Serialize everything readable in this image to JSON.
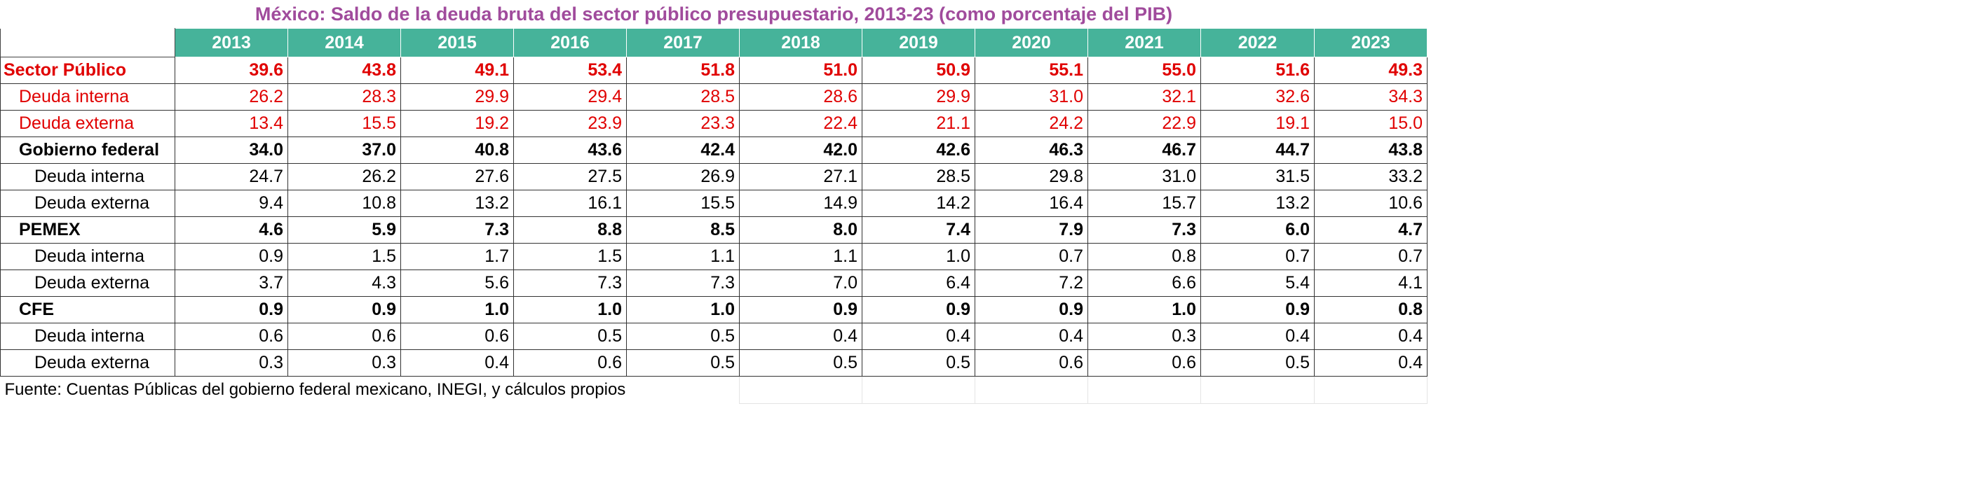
{
  "title": "México: Saldo de la deuda bruta del sector público presupuestario, 2013-23 (como  porcentaje del PIB)",
  "table": {
    "headers": [
      "2013",
      "2014",
      "2015",
      "2016",
      "2017",
      "2018",
      "2019",
      "2020",
      "2021",
      "2022",
      "2023"
    ],
    "rows": [
      {
        "label": "Sector Público",
        "values": [
          "39.6",
          "43.8",
          "49.1",
          "53.4",
          "51.8",
          "51.0",
          "50.9",
          "55.1",
          "55.0",
          "51.6",
          "49.3"
        ]
      },
      {
        "label": "Deuda interna",
        "values": [
          "26.2",
          "28.3",
          "29.9",
          "29.4",
          "28.5",
          "28.6",
          "29.9",
          "31.0",
          "32.1",
          "32.6",
          "34.3"
        ]
      },
      {
        "label": "Deuda externa",
        "values": [
          "13.4",
          "15.5",
          "19.2",
          "23.9",
          "23.3",
          "22.4",
          "21.1",
          "24.2",
          "22.9",
          "19.1",
          "15.0"
        ]
      },
      {
        "label": "Gobierno federal",
        "values": [
          "34.0",
          "37.0",
          "40.8",
          "43.6",
          "42.4",
          "42.0",
          "42.6",
          "46.3",
          "46.7",
          "44.7",
          "43.8"
        ]
      },
      {
        "label": "Deuda interna",
        "values": [
          "24.7",
          "26.2",
          "27.6",
          "27.5",
          "26.9",
          "27.1",
          "28.5",
          "29.8",
          "31.0",
          "31.5",
          "33.2"
        ]
      },
      {
        "label": "Deuda externa",
        "values": [
          "9.4",
          "10.8",
          "13.2",
          "16.1",
          "15.5",
          "14.9",
          "14.2",
          "16.4",
          "15.7",
          "13.2",
          "10.6"
        ]
      },
      {
        "label": "PEMEX",
        "values": [
          "4.6",
          "5.9",
          "7.3",
          "8.8",
          "8.5",
          "8.0",
          "7.4",
          "7.9",
          "7.3",
          "6.0",
          "4.7"
        ]
      },
      {
        "label": "Deuda interna",
        "values": [
          "0.9",
          "1.5",
          "1.7",
          "1.5",
          "1.1",
          "1.1",
          "1.0",
          "0.7",
          "0.8",
          "0.7",
          "0.7"
        ]
      },
      {
        "label": "Deuda externa",
        "values": [
          "3.7",
          "4.3",
          "5.6",
          "7.3",
          "7.3",
          "7.0",
          "6.4",
          "7.2",
          "6.6",
          "5.4",
          "4.1"
        ]
      },
      {
        "label": "CFE",
        "values": [
          "0.9",
          "0.9",
          "1.0",
          "1.0",
          "1.0",
          "0.9",
          "0.9",
          "0.9",
          "1.0",
          "0.9",
          "0.8"
        ]
      },
      {
        "label": "Deuda interna",
        "values": [
          "0.6",
          "0.6",
          "0.6",
          "0.5",
          "0.5",
          "0.4",
          "0.4",
          "0.4",
          "0.3",
          "0.4",
          "0.4"
        ]
      },
      {
        "label": "Deuda externa",
        "values": [
          "0.3",
          "0.3",
          "0.4",
          "0.6",
          "0.5",
          "0.5",
          "0.5",
          "0.6",
          "0.6",
          "0.5",
          "0.4"
        ]
      }
    ]
  },
  "source": "Fuente: Cuentas Públicas del gobierno federal mexicano, INEGI, y cálculos propios"
}
